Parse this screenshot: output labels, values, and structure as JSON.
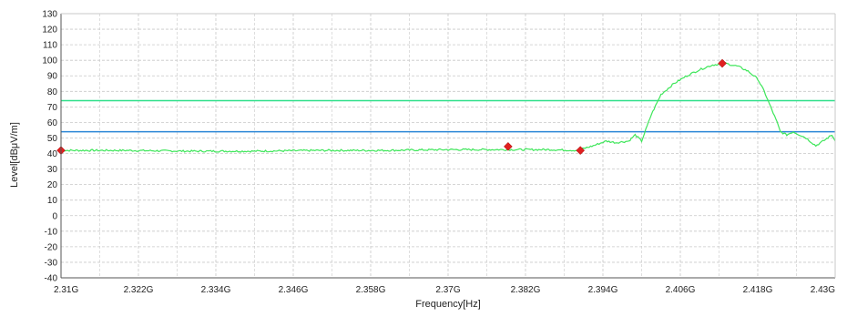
{
  "chart_data": {
    "type": "line",
    "xlabel": "Frequency[Hz]",
    "ylabel": "Level[dBμV/m]",
    "x_unit": "GHz",
    "xlim": [
      2.31,
      2.43
    ],
    "ylim": [
      -40,
      130
    ],
    "grid": true,
    "x_ticks": [
      2.31,
      2.322,
      2.334,
      2.346,
      2.358,
      2.37,
      2.382,
      2.394,
      2.406,
      2.418,
      2.43
    ],
    "x_tick_labels": [
      "2.31G",
      "2.322G",
      "2.334G",
      "2.346G",
      "2.358G",
      "2.37G",
      "2.382G",
      "2.394G",
      "2.406G",
      "2.418G",
      "2.43G"
    ],
    "y_ticks": [
      -40,
      -30,
      -20,
      -10,
      0,
      10,
      20,
      30,
      40,
      50,
      60,
      70,
      80,
      90,
      100,
      110,
      120,
      130
    ],
    "y_tick_labels": [
      "-40",
      "-30",
      "-20",
      "-10",
      "0",
      "10",
      "20",
      "30",
      "40",
      "50",
      "60",
      "70",
      "80",
      "90",
      "100",
      "110",
      "120",
      "130"
    ],
    "limit_lines": [
      {
        "value": 74,
        "color": "#2ee08a"
      },
      {
        "value": 54,
        "color": "#2a86d6"
      }
    ],
    "series": [
      {
        "color": "#3ee65a",
        "x": [
          2.31,
          2.32,
          2.33,
          2.34,
          2.35,
          2.36,
          2.37,
          2.38,
          2.386,
          2.39,
          2.3925,
          2.3945,
          2.396,
          2.398,
          2.399,
          2.4,
          2.4015,
          2.403,
          2.405,
          2.407,
          2.409,
          2.411,
          2.413,
          2.415,
          2.4165,
          2.418,
          2.419,
          2.42,
          2.421,
          2.4215,
          2.4225,
          2.4235,
          2.4255,
          2.427,
          2.4285,
          2.4295,
          2.43
        ],
        "y": [
          42,
          42,
          41.5,
          41.5,
          42,
          42,
          42.5,
          42.5,
          42.5,
          42,
          45,
          48,
          47,
          48,
          52,
          48,
          65,
          78,
          85,
          90,
          94,
          97,
          98,
          96,
          93,
          88,
          80,
          70,
          60,
          54,
          52,
          54,
          50,
          45,
          49,
          52,
          48
        ]
      }
    ],
    "markers": [
      {
        "x": 2.31,
        "y": 42,
        "color": "#e02020"
      },
      {
        "x": 2.3793,
        "y": 44.5,
        "color": "#e02020"
      },
      {
        "x": 2.3905,
        "y": 42,
        "color": "#e02020"
      },
      {
        "x": 2.4125,
        "y": 98,
        "color": "#e02020"
      }
    ],
    "colors": {
      "grid": "#c8c8c8",
      "axis": "#555555"
    }
  }
}
